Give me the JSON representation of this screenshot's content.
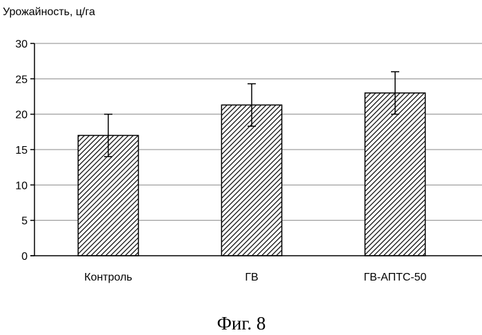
{
  "chart_data": {
    "type": "bar",
    "ylabel": "Урожайность, ц/га",
    "xlabel": "",
    "categories": [
      "Контроль",
      "ГВ",
      "ГВ-АПТС-50"
    ],
    "values": [
      17,
      21.3,
      23
    ],
    "error_bars": [
      3,
      3,
      3
    ],
    "ylim": [
      0,
      30
    ],
    "yticks": [
      0,
      5,
      10,
      15,
      20,
      25,
      30
    ],
    "grid": true,
    "bar_fill": "diagonal-hatch",
    "bar_color": "#000000"
  },
  "caption": "Фиг. 8"
}
